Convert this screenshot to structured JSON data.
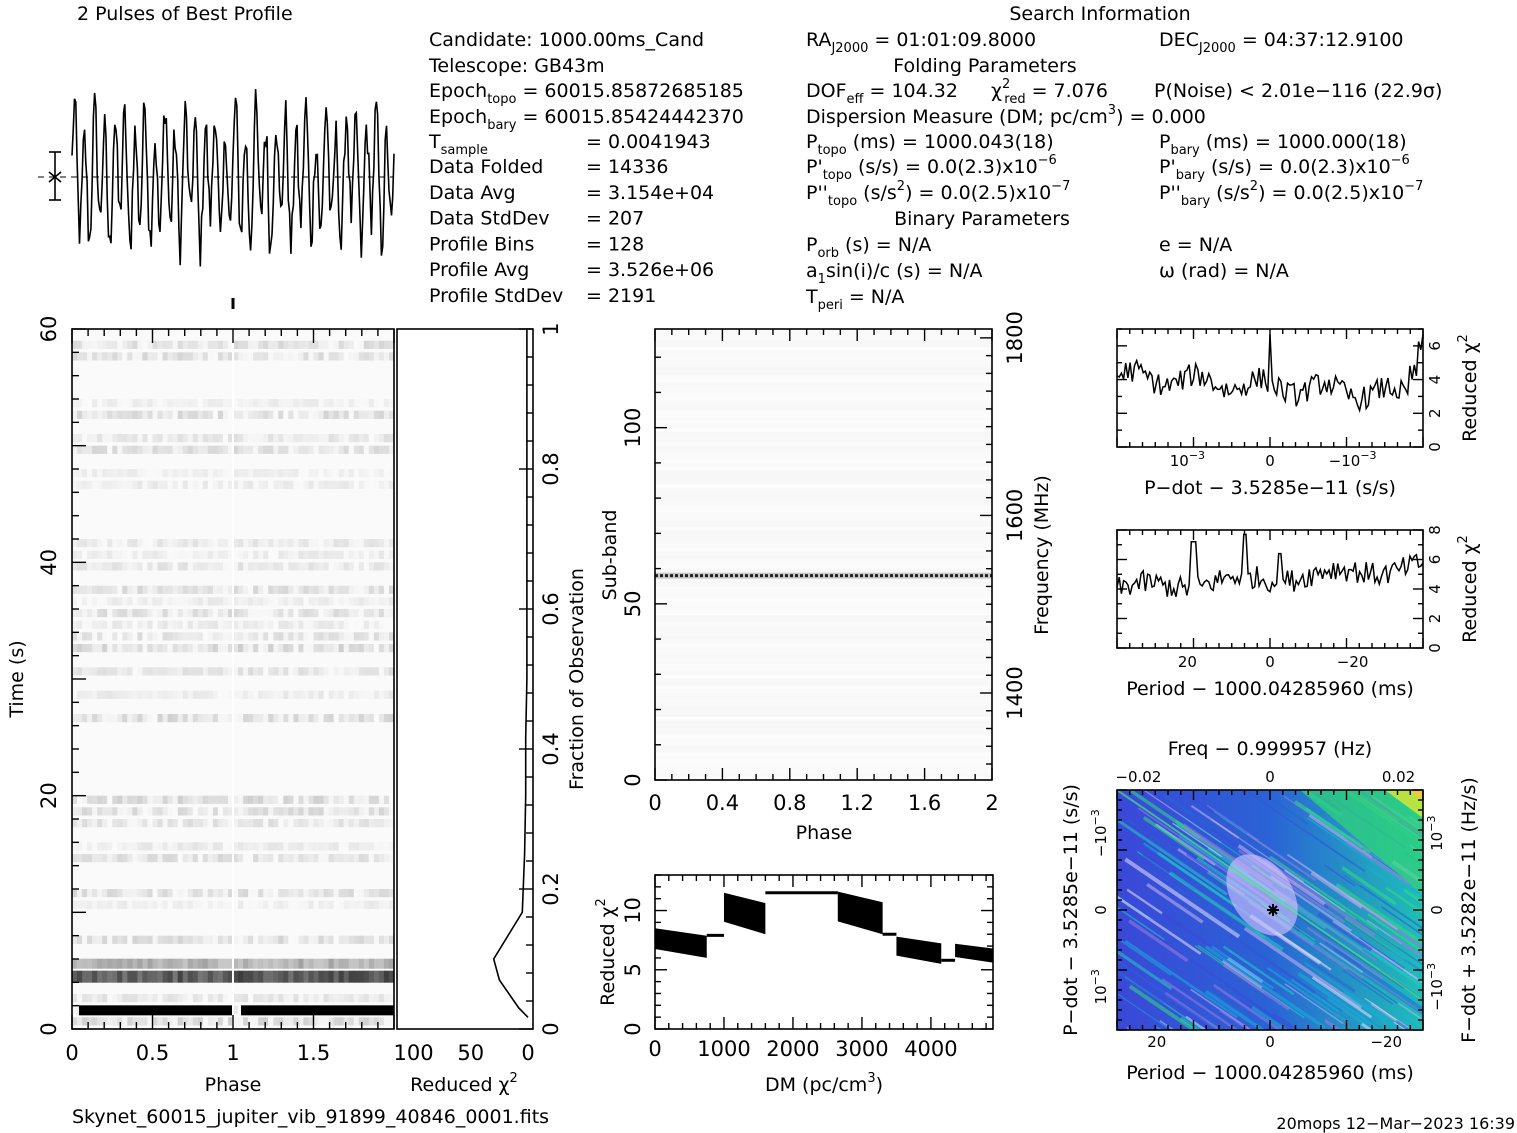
{
  "header": {
    "profile_title": "2 Pulses of Best Profile",
    "search_title": "Search Information",
    "folding_title": "Folding Parameters",
    "binary_title": "Binary Parameters"
  },
  "info": {
    "candidate": "Candidate:   1000.00ms_Cand",
    "telescope": "Telescope:   GB43m",
    "epoch_topo": "Epoch",
    "epoch_topo_sub": "topo",
    "epoch_topo_val": "= 60015.85872685185",
    "epoch_bary": "Epoch",
    "epoch_bary_sub": "bary",
    "epoch_bary_val": "= 60015.85424442370",
    "tsample": "T",
    "tsample_sub": "sample",
    "tsample_val": "=   0.0041943",
    "rows": [
      {
        "label": "Data Folded",
        "value": "=   14336"
      },
      {
        "label": "Data Avg",
        "value": "=   3.154e+04"
      },
      {
        "label": "Data StdDev",
        "value": "=   207"
      },
      {
        "label": "Profile Bins",
        "value": "=   128"
      },
      {
        "label": "Profile Avg",
        "value": "=   3.526e+06"
      },
      {
        "label": "Profile StdDev",
        "value": "=   2191"
      }
    ]
  },
  "search": {
    "ra": "RA",
    "ra_sub": "J2000",
    "ra_val": "= 01:01:09.8000",
    "dec": "DEC",
    "dec_sub": "J2000",
    "dec_val": "= 04:37:12.9100",
    "dof": "DOF",
    "dof_sub": "eff",
    "dof_val": "= 104.32",
    "chi": "χ",
    "chi_sup": "2",
    "chi_sub": "red",
    "chi_val": "= 7.076",
    "pnoise": "P(Noise) < 2.01e−116   (22.9σ)",
    "dm": "Dispersion Measure (DM; pc/cm",
    "dm_sup": "3",
    "dm_val": ") = 0.000",
    "ptopo": "P",
    "ptopo_sub": "topo",
    "ptopo_val": "(ms)  =   1000.043(18)",
    "pbary": "P",
    "pbary_sub": "bary",
    "pbary_val": "(ms)  =   1000.000(18)",
    "pdtopo": "P'",
    "pdtopo_sub": "topo",
    "pdtopo_val": "(s/s) = 0.0(2.3)x10",
    "pdtopo_sup": "−6",
    "pdbary": "P'",
    "pdbary_sub": "bary",
    "pdbary_val": "(s/s) = 0.0(2.3)x10",
    "pdbary_sup": "−6",
    "pddtopo": "P''",
    "pddtopo_sub": "topo",
    "pddtopo_val": "(s/s",
    "pddtopo_sup": "2",
    "pddtopo_val2": ") = 0.0(2.5)x10",
    "pddtopo_sup2": "−7",
    "pddbary": "P''",
    "pddbary_sub": "bary",
    "pddbary_val": "(s/s",
    "pddbary_sup": "2",
    "pddbary_val2": ") = 0.0(2.5)x10",
    "pddbary_sup2": "−7",
    "porb": "P",
    "porb_sub": "orb",
    "porb_val": "(s) = N/A",
    "ecc": "e = N/A",
    "asini": "a",
    "asini_sub": "1",
    "asini_val": "sin(i)/c (s) = N/A",
    "omega": "ω (rad) = N/A",
    "tperi": "T",
    "tperi_sub": "peri",
    "tperi_val": "= N/A"
  },
  "footer": {
    "filename": "Skynet_60015_jupiter_vib_91899_40846_0001.fits",
    "stamp": "20mops 12−Mar−2023 16:39"
  },
  "chart_data": [
    {
      "type": "line",
      "name": "profile",
      "title": "2 Pulses of Best Profile",
      "xlim": [
        0,
        2
      ],
      "note_shape": "noisy sinusoid, ~32 cycles over two pulses, large errorbar marker at left"
    },
    {
      "type": "heatmap",
      "name": "time-phase",
      "xlabel": "Phase",
      "ylabel": "Time (s)",
      "xlim": [
        0,
        2
      ],
      "ylim": [
        0,
        60
      ],
      "xticks": [
        0,
        0.5,
        1,
        1.5
      ],
      "yticks": [
        0,
        20,
        40,
        60
      ],
      "right_label": "Fraction of Observation",
      "right_ticks": [
        0.2,
        0.4,
        0.6,
        0.8,
        1
      ]
    },
    {
      "type": "line",
      "name": "chi-vs-time",
      "xlabel": "Reduced χ",
      "xlabel_sup": "2",
      "xticks": [
        100,
        50,
        0
      ],
      "x": [
        0,
        8,
        25,
        30,
        5,
        3,
        2,
        2,
        1,
        1,
        1,
        1
      ],
      "y": [
        1.0,
        1.8,
        4.2,
        6.0,
        10.0,
        15.0,
        20.0,
        25.0,
        30.0,
        40.0,
        50.0,
        60.0
      ]
    },
    {
      "type": "heatmap",
      "name": "subband-phase",
      "xlabel": "Phase",
      "ylabel": "Sub-band",
      "xlim": [
        0,
        2
      ],
      "ylim": [
        0,
        128
      ],
      "xticks": [
        0,
        0.4,
        0.8,
        1.2,
        1.6,
        2
      ],
      "yticks": [
        0,
        50,
        100
      ],
      "right_label": "Frequency (MHz)",
      "right_ticks": [
        1400,
        1600,
        1800
      ],
      "highlight_subband": 58
    },
    {
      "type": "line",
      "name": "chi-vs-dm",
      "xlabel": "DM (pc/cm",
      "xlabel_sup": "3",
      "xlabel_end": ")",
      "ylabel": "Reduced χ",
      "ylabel_sup": "2",
      "xlim": [
        0,
        4900
      ],
      "ylim": [
        0,
        13
      ],
      "xticks": [
        0,
        1000,
        2000,
        3000,
        4000
      ],
      "yticks": [
        0,
        5,
        10
      ],
      "segments": [
        {
          "x": [
            0,
            750
          ],
          "lo": 6,
          "hi": 8.5
        },
        {
          "x": [
            750,
            1000
          ],
          "lo": 7.8,
          "hi": 8.0
        },
        {
          "x": [
            1000,
            1600
          ],
          "lo": 8,
          "hi": 11.5
        },
        {
          "x": [
            1600,
            2650
          ],
          "lo": 11.3,
          "hi": 11.7
        },
        {
          "x": [
            2650,
            3300
          ],
          "lo": 8,
          "hi": 11.6
        },
        {
          "x": [
            3300,
            3500
          ],
          "lo": 7.9,
          "hi": 8.1
        },
        {
          "x": [
            3500,
            4150
          ],
          "lo": 5.5,
          "hi": 7.8
        },
        {
          "x": [
            4150,
            4350
          ],
          "lo": 5.7,
          "hi": 5.9
        },
        {
          "x": [
            4350,
            4900
          ],
          "lo": 5.6,
          "hi": 7.2
        }
      ]
    },
    {
      "type": "line",
      "name": "chi-vs-pdot",
      "xlabel": "P−dot − 3.5285e−11 (s/s)",
      "ylabel": "Reduced χ",
      "ylabel_sup": "2",
      "ylim": [
        0,
        7
      ],
      "yticks": [
        0,
        2,
        4,
        6
      ],
      "xticks": [
        "10",
        "0",
        "−10"
      ],
      "xtick_sup": "−3"
    },
    {
      "type": "line",
      "name": "chi-vs-period",
      "xlabel": "Period − 1000.04285960 (ms)",
      "ylabel": "Reduced χ",
      "ylabel_sup": "2",
      "ylim": [
        0,
        8
      ],
      "yticks": [
        0,
        2,
        4,
        6,
        8
      ],
      "xticks": [
        20,
        0,
        -20
      ]
    },
    {
      "type": "heatmap",
      "name": "pdot-period",
      "title": "Freq − 0.999957 (Hz)",
      "top_ticks": [
        "−0.02",
        "0",
        "0.02"
      ],
      "xlabel": "Period − 1000.04285960 (ms)",
      "xticks": [
        20,
        0,
        -20
      ],
      "ylabel": "P−dot − 3.5285e−11 (s/s)",
      "right_label": "F−dot + 3.5282e−11 (Hz/s)",
      "left_ticks": [
        "−10",
        "0",
        "10"
      ],
      "left_tick_sup": "−3",
      "right_ticks": [
        "10",
        "0",
        "−10"
      ],
      "right_tick_sup": "−3"
    }
  ]
}
